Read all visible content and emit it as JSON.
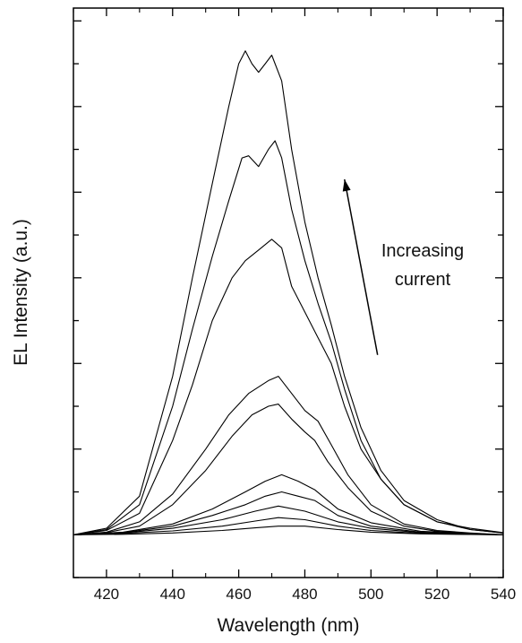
{
  "chart_data": {
    "type": "line",
    "title": "",
    "xlabel": "Wavelength (nm)",
    "ylabel": "EL Intensity (a.u.)",
    "xlim": [
      410,
      540
    ],
    "ylim": [
      -10,
      123
    ],
    "xticks": [
      420,
      440,
      460,
      480,
      500,
      520,
      540
    ],
    "y_minor_ticks": [
      -10,
      0,
      10,
      20,
      30,
      40,
      50,
      60,
      70,
      80,
      90,
      100,
      110,
      120
    ],
    "y_tick_labels_shown": false,
    "annotation": {
      "line1": "Increasing",
      "line2": "current",
      "arrow_from": [
        502,
        42
      ],
      "arrow_to": [
        492,
        83
      ]
    },
    "series": [
      {
        "points": [
          [
            410,
            0
          ],
          [
            425,
            0.1
          ],
          [
            440,
            0.4
          ],
          [
            455,
            1.0
          ],
          [
            465,
            1.6
          ],
          [
            472,
            2.0
          ],
          [
            480,
            2.0
          ],
          [
            490,
            1.2
          ],
          [
            500,
            0.6
          ],
          [
            515,
            0.2
          ],
          [
            530,
            0.05
          ],
          [
            540,
            0
          ]
        ]
      },
      {
        "points": [
          [
            410,
            0
          ],
          [
            425,
            0.3
          ],
          [
            440,
            0.9
          ],
          [
            455,
            2.0
          ],
          [
            465,
            3.2
          ],
          [
            472,
            4.0
          ],
          [
            480,
            3.5
          ],
          [
            490,
            2.0
          ],
          [
            500,
            1.0
          ],
          [
            515,
            0.3
          ],
          [
            530,
            0.1
          ],
          [
            540,
            0
          ]
        ]
      },
      {
        "points": [
          [
            410,
            0
          ],
          [
            425,
            0.4
          ],
          [
            440,
            1.5
          ],
          [
            455,
            3.5
          ],
          [
            465,
            5.5
          ],
          [
            472,
            6.7
          ],
          [
            480,
            5.5
          ],
          [
            490,
            3.0
          ],
          [
            500,
            1.5
          ],
          [
            515,
            0.5
          ],
          [
            530,
            0.15
          ],
          [
            540,
            0
          ]
        ]
      },
      {
        "points": [
          [
            410,
            0
          ],
          [
            425,
            0.5
          ],
          [
            440,
            2.0
          ],
          [
            452,
            4.5
          ],
          [
            462,
            7.0
          ],
          [
            468,
            9.0
          ],
          [
            473,
            10.0
          ],
          [
            478,
            9.0
          ],
          [
            483,
            8.0
          ],
          [
            490,
            4.5
          ],
          [
            500,
            2.0
          ],
          [
            515,
            0.6
          ],
          [
            530,
            0.2
          ],
          [
            540,
            0
          ]
        ]
      },
      {
        "points": [
          [
            410,
            0
          ],
          [
            425,
            0.6
          ],
          [
            440,
            2.5
          ],
          [
            452,
            6.0
          ],
          [
            462,
            10.0
          ],
          [
            468,
            12.5
          ],
          [
            473,
            14.0
          ],
          [
            478,
            12.5
          ],
          [
            483,
            10.5
          ],
          [
            490,
            6.0
          ],
          [
            500,
            2.8
          ],
          [
            515,
            0.8
          ],
          [
            530,
            0.3
          ],
          [
            540,
            0
          ]
        ]
      },
      {
        "points": [
          [
            410,
            0
          ],
          [
            420,
            0.5
          ],
          [
            430,
            2.0
          ],
          [
            440,
            7.0
          ],
          [
            450,
            15.0
          ],
          [
            458,
            23.0
          ],
          [
            464,
            28.0
          ],
          [
            469,
            30.0
          ],
          [
            472,
            30.5
          ],
          [
            476,
            27.0
          ],
          [
            480,
            24.0
          ],
          [
            483,
            22.0
          ],
          [
            487,
            17.0
          ],
          [
            493,
            11.0
          ],
          [
            500,
            5.5
          ],
          [
            510,
            2.0
          ],
          [
            520,
            0.8
          ],
          [
            530,
            0.3
          ],
          [
            540,
            0
          ]
        ]
      },
      {
        "points": [
          [
            410,
            0
          ],
          [
            420,
            0.6
          ],
          [
            430,
            3.0
          ],
          [
            440,
            9.5
          ],
          [
            450,
            20.0
          ],
          [
            457,
            28.0
          ],
          [
            463,
            33.0
          ],
          [
            469,
            36.0
          ],
          [
            472,
            37.0
          ],
          [
            476,
            33.0
          ],
          [
            480,
            29.0
          ],
          [
            484,
            26.5
          ],
          [
            488,
            21.0
          ],
          [
            493,
            14.0
          ],
          [
            500,
            7.0
          ],
          [
            510,
            2.5
          ],
          [
            520,
            1.0
          ],
          [
            530,
            0.4
          ],
          [
            540,
            0
          ]
        ]
      },
      {
        "points": [
          [
            410,
            0
          ],
          [
            420,
            1.0
          ],
          [
            430,
            5.0
          ],
          [
            440,
            22.0
          ],
          [
            446,
            35.0
          ],
          [
            452,
            50.0
          ],
          [
            458,
            60.0
          ],
          [
            462,
            64.0
          ],
          [
            466,
            66.5
          ],
          [
            470,
            69.0
          ],
          [
            473,
            67.0
          ],
          [
            476,
            58.0
          ],
          [
            480,
            52.0
          ],
          [
            484,
            46.0
          ],
          [
            488,
            40.0
          ],
          [
            492,
            30.0
          ],
          [
            497,
            20.0
          ],
          [
            503,
            13.0
          ],
          [
            510,
            7.0
          ],
          [
            520,
            3.0
          ],
          [
            530,
            1.5
          ],
          [
            540,
            0.5
          ]
        ]
      },
      {
        "points": [
          [
            410,
            0
          ],
          [
            420,
            1.2
          ],
          [
            430,
            7.0
          ],
          [
            440,
            30.0
          ],
          [
            446,
            48.0
          ],
          [
            452,
            65.0
          ],
          [
            457,
            78.0
          ],
          [
            461,
            88.0
          ],
          [
            463,
            88.5
          ],
          [
            466,
            86.0
          ],
          [
            469,
            90.0
          ],
          [
            471,
            92.0
          ],
          [
            473,
            88.0
          ],
          [
            476,
            76.0
          ],
          [
            480,
            64.0
          ],
          [
            484,
            54.0
          ],
          [
            488,
            45.0
          ],
          [
            492,
            34.0
          ],
          [
            497,
            22.0
          ],
          [
            503,
            13.0
          ],
          [
            510,
            7.0
          ],
          [
            520,
            3.0
          ],
          [
            530,
            1.2
          ],
          [
            540,
            0.4
          ]
        ]
      },
      {
        "points": [
          [
            410,
            0
          ],
          [
            420,
            1.5
          ],
          [
            430,
            9.0
          ],
          [
            440,
            37.0
          ],
          [
            446,
            60.0
          ],
          [
            452,
            82.0
          ],
          [
            457,
            100.0
          ],
          [
            460,
            110.0
          ],
          [
            462,
            113.0
          ],
          [
            464,
            110.0
          ],
          [
            466,
            108.0
          ],
          [
            468,
            110.0
          ],
          [
            470,
            112.0
          ],
          [
            473,
            106.0
          ],
          [
            476,
            90.0
          ],
          [
            480,
            73.0
          ],
          [
            484,
            60.0
          ],
          [
            488,
            49.0
          ],
          [
            492,
            37.0
          ],
          [
            497,
            25.0
          ],
          [
            503,
            15.0
          ],
          [
            510,
            8.0
          ],
          [
            520,
            3.5
          ],
          [
            530,
            1.2
          ],
          [
            540,
            0.4
          ]
        ]
      }
    ]
  }
}
